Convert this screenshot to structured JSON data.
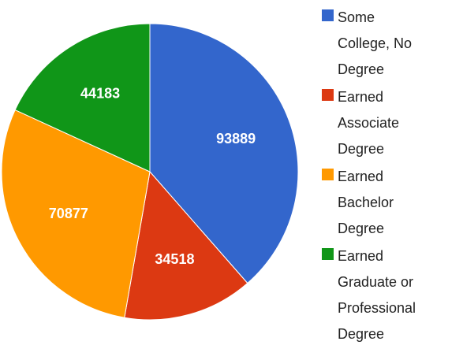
{
  "chart_data": {
    "type": "pie",
    "categories": [
      "Some College, No Degree",
      "Earned Associate Degree",
      "Earned Bachelor Degree",
      "Earned Graduate or Professional Degree"
    ],
    "values": [
      93889,
      34518,
      70877,
      44183
    ],
    "colors": [
      "#3366cc",
      "#dc3912",
      "#ff9900",
      "#109618"
    ],
    "legend": "right"
  }
}
